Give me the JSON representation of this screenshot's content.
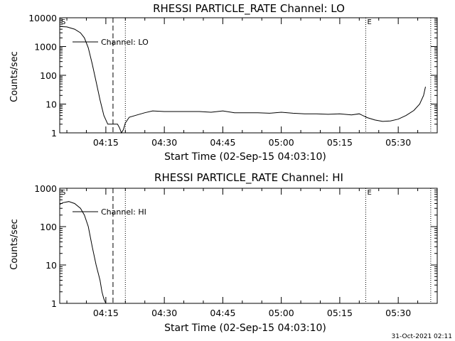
{
  "chart_data": [
    {
      "type": "line",
      "title": "RHESSI PARTICLE_RATE Channel: LO",
      "xlabel": "Start Time (02-Sep-15 04:03:10)",
      "ylabel": "Counts/sec",
      "yscale": "log",
      "xlim": [
        "04:03:10",
        "05:40:00"
      ],
      "ylim": [
        1,
        10000
      ],
      "x_ticks": [
        "04:15",
        "04:30",
        "04:45",
        "05:00",
        "05:15",
        "05:30"
      ],
      "y_ticks": [
        "1",
        "10",
        "100",
        "1000",
        "10000"
      ],
      "legend": {
        "label": "Channel: LO",
        "placement": "top-left"
      },
      "markers": [
        {
          "time": "04:03:10",
          "label": "S",
          "style": "none"
        },
        {
          "time": "04:16:50",
          "label": "",
          "style": "dashed"
        },
        {
          "time": "04:20:00",
          "label": "",
          "style": "dotted"
        },
        {
          "time": "05:21:40",
          "label": "E",
          "style": "dotted"
        },
        {
          "time": "05:38:20",
          "label": "",
          "style": "dotted"
        }
      ],
      "series": [
        {
          "x": [
            "04:03:10",
            "04:05:00",
            "04:07:00",
            "04:08:30",
            "04:09:30",
            "04:10:30",
            "04:11:30",
            "04:12:30",
            "04:13:30",
            "04:14:30",
            "04:15:30",
            "04:16:30",
            "04:17:30",
            "04:18:00",
            "04:18:30",
            "04:19:00",
            "04:19:30",
            "04:20:00",
            "04:21:00",
            "04:23:00",
            "04:25:00",
            "04:27:00",
            "04:30:00",
            "04:33:00",
            "04:36:00",
            "04:39:00",
            "04:42:00",
            "04:45:00",
            "04:48:00",
            "04:51:00",
            "04:54:00",
            "04:57:00",
            "05:00:00",
            "05:03:00",
            "05:06:00",
            "05:09:00",
            "05:12:00",
            "05:15:00",
            "05:18:00",
            "05:20:00",
            "05:22:00",
            "05:24:00",
            "05:26:00",
            "05:28:00",
            "05:30:00",
            "05:32:00",
            "05:34:00",
            "05:35:30",
            "05:36:30",
            "05:37:00"
          ],
          "y": [
            5000,
            4800,
            4000,
            3000,
            2000,
            900,
            250,
            60,
            14,
            4,
            2,
            2,
            2,
            2,
            1.5,
            1,
            1.3,
            2.2,
            3.5,
            4.2,
            5,
            5.8,
            5.5,
            5.5,
            5.5,
            5.5,
            5.2,
            5.8,
            5,
            5,
            5,
            4.8,
            5.2,
            4.8,
            4.6,
            4.6,
            4.4,
            4.6,
            4.2,
            4.6,
            3.4,
            2.8,
            2.5,
            2.6,
            3,
            4,
            6,
            10,
            20,
            40
          ]
        }
      ]
    },
    {
      "type": "line",
      "title": "RHESSI PARTICLE_RATE Channel: HI",
      "xlabel": "Start Time (02-Sep-15 04:03:10)",
      "ylabel": "Counts/sec",
      "yscale": "log",
      "xlim": [
        "04:03:10",
        "05:40:00"
      ],
      "ylim": [
        1,
        1000
      ],
      "x_ticks": [
        "04:15",
        "04:30",
        "04:45",
        "05:00",
        "05:15",
        "05:30"
      ],
      "y_ticks": [
        "1",
        "10",
        "100",
        "1000"
      ],
      "legend": {
        "label": "Channel: HI",
        "placement": "top-left"
      },
      "markers": [
        {
          "time": "04:03:10",
          "label": "S",
          "style": "none"
        },
        {
          "time": "04:16:50",
          "label": "",
          "style": "dashed"
        },
        {
          "time": "04:20:00",
          "label": "",
          "style": "dotted"
        },
        {
          "time": "05:21:40",
          "label": "E",
          "style": "dotted"
        },
        {
          "time": "05:38:20",
          "label": "",
          "style": "dotted"
        }
      ],
      "series": [
        {
          "x": [
            "04:03:10",
            "04:04:00",
            "04:05:30",
            "04:07:00",
            "04:08:30",
            "04:09:30",
            "04:10:30",
            "04:11:30",
            "04:12:30",
            "04:13:30",
            "04:14:00",
            "04:14:30",
            "04:15:00"
          ],
          "y": [
            380,
            420,
            450,
            400,
            300,
            200,
            100,
            30,
            10,
            4,
            2,
            1.3,
            1
          ]
        }
      ]
    }
  ],
  "footer": "31-Oct-2021 02:11"
}
